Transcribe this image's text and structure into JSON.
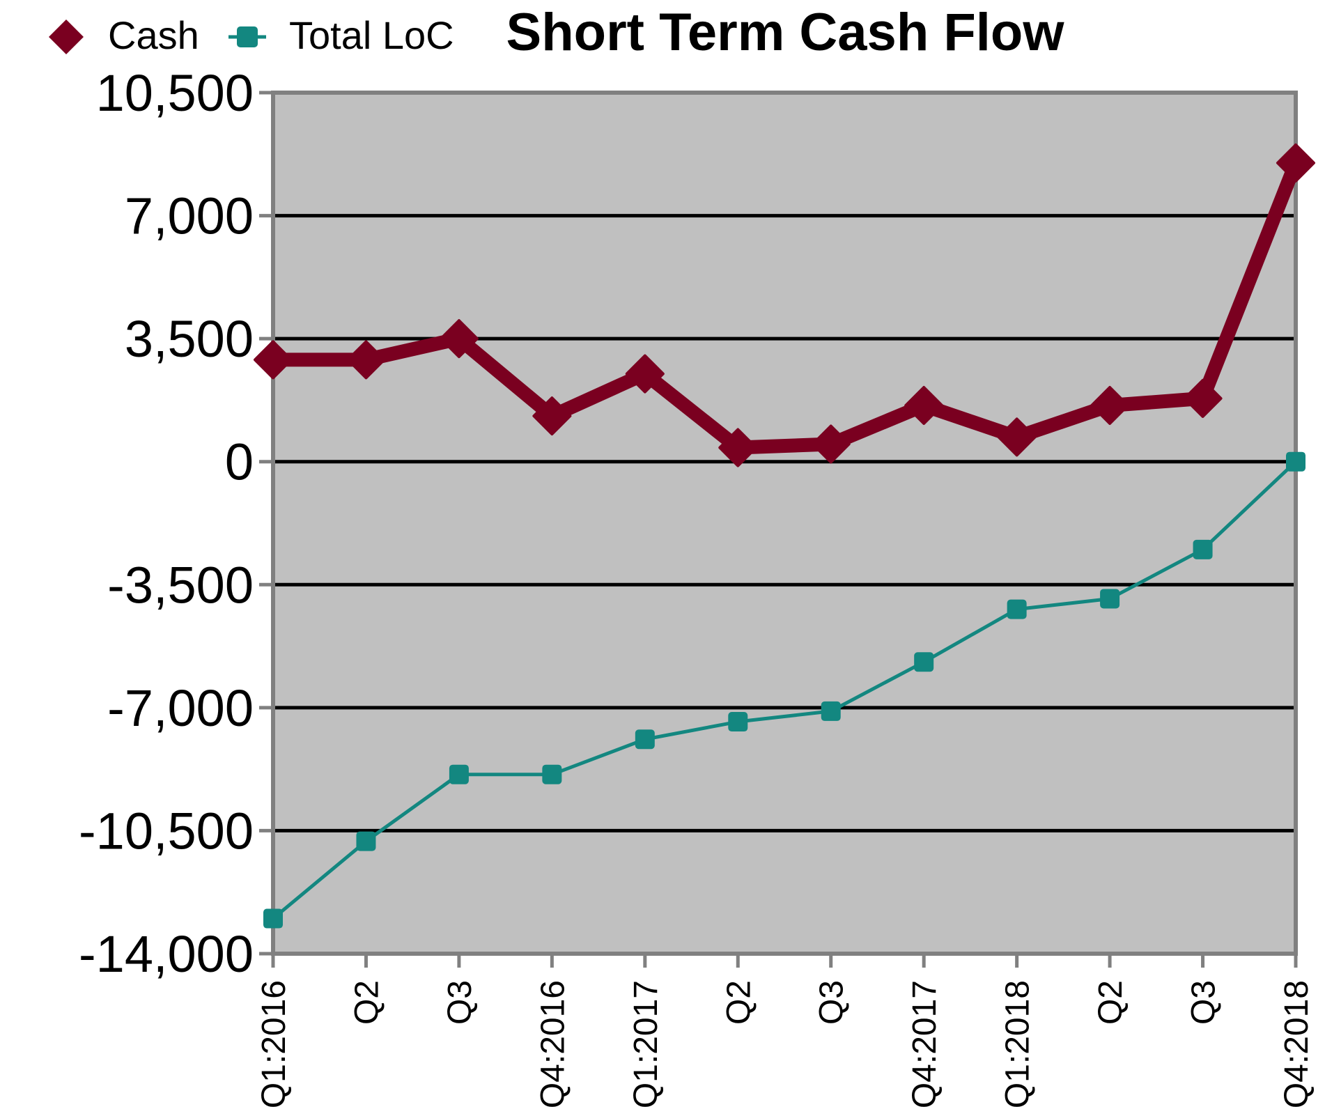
{
  "chart_data": {
    "type": "line",
    "title": "Short Term Cash Flow",
    "xlabel": "",
    "ylabel": "",
    "ylim": [
      -14000,
      10500
    ],
    "yticks": [
      10500,
      7000,
      3500,
      0,
      -3500,
      -7000,
      -10500,
      -14000
    ],
    "ytick_labels": [
      "10,500",
      "7,000",
      "3,500",
      "0",
      "-3,500",
      "-7,000",
      "-10,500",
      "-14,000"
    ],
    "categories": [
      "Q1:2016",
      "Q2",
      "Q3",
      "Q4:2016",
      "Q1:2017",
      "Q2",
      "Q3",
      "Q4:2017",
      "Q1:2018",
      "Q2",
      "Q3",
      "Q4:2018"
    ],
    "grid": true,
    "legend_position": "top-left",
    "series": [
      {
        "name": "Cash",
        "color": "#7a0020",
        "marker": "diamond",
        "values": [
          2900,
          2900,
          3500,
          1300,
          2500,
          400,
          500,
          1600,
          700,
          1600,
          1800,
          8500
        ]
      },
      {
        "name": "Total LoC",
        "color": "#138780",
        "marker": "square",
        "values": [
          -13000,
          -10800,
          -8900,
          -8900,
          -7900,
          -7400,
          -7100,
          -5700,
          -4200,
          -3900,
          -2500,
          0
        ]
      }
    ],
    "plot_background": "#c0c0c0",
    "frame_color": "#808080",
    "gridline_color": "#000000"
  }
}
